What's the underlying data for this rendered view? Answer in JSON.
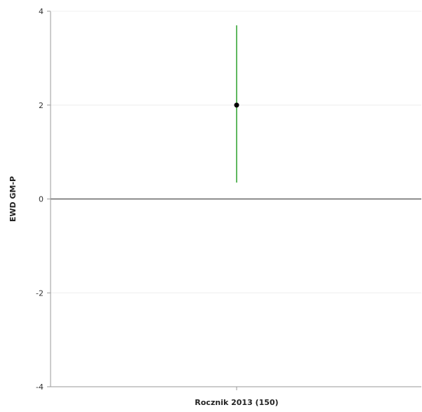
{
  "chart_data": {
    "type": "scatter",
    "title": "",
    "xlabel": "Rocznik 2013 (150)",
    "ylabel": "EWD GM-P",
    "ylim": [
      -4,
      4
    ],
    "yticks": [
      -4,
      -2,
      0,
      2,
      4
    ],
    "grid": true,
    "points": [
      {
        "y": 2.0,
        "ci_low": 0.35,
        "ci_high": 3.7
      }
    ],
    "colors": {
      "point": "#000000",
      "error_bar": "#2ca02c",
      "zero_line": "#666666",
      "grid": "#eeeeee",
      "axis": "#999999"
    }
  }
}
